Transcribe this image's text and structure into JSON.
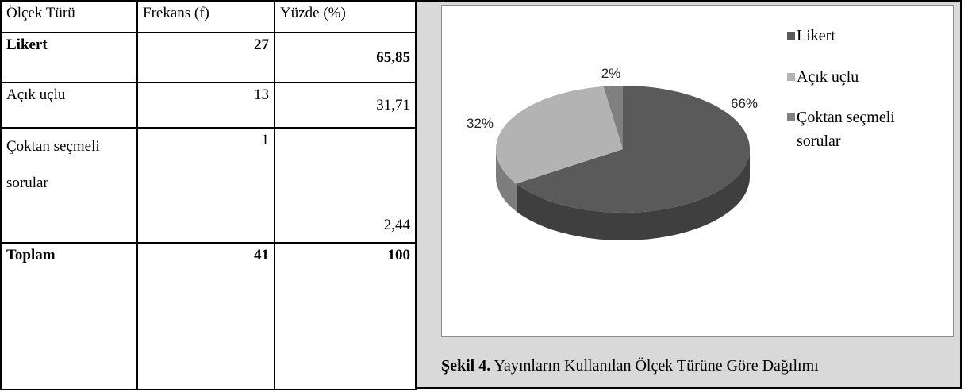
{
  "table": {
    "header": [
      "Ölçek Türü",
      "Frekans (f)",
      "Yüzde (%)"
    ],
    "rows": [
      [
        "Likert",
        "27",
        "65,85"
      ],
      [
        "Açık uçlu",
        "13",
        "31,71"
      ],
      [
        "Çoktan seçmeli sorular",
        "1",
        "2,44"
      ],
      [
        "Toplam",
        "41",
        "100"
      ]
    ]
  },
  "chart_data": {
    "type": "pie",
    "categories": [
      "Likert",
      "Açık uçlu",
      "Çoktan seçmeli sorular"
    ],
    "values": [
      65.85,
      31.71,
      2.44
    ],
    "value_labels": [
      "66%",
      "32%",
      "2%"
    ],
    "colors": [
      "#5a5a5a",
      "#b3b3b3",
      "#808080"
    ],
    "legend": "right"
  },
  "caption": {
    "label": "Şekil 4.",
    "text": "Yayınların Kullanılan Ölçek Türüne Göre Dağılımı"
  }
}
